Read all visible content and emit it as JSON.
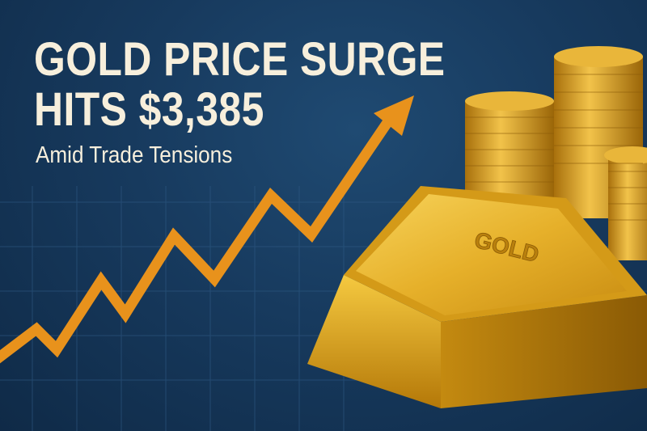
{
  "headline": {
    "line1": "GOLD PRICE SURGE",
    "line2": "HITS $3,385",
    "subtitle": "Amid Trade Tensions"
  },
  "bar_engraving": "GOLD",
  "colors": {
    "background": "#173a5e",
    "text": "#f7efdc",
    "arrow": "#e8921c",
    "gold": "#e0a923"
  },
  "icons": [
    "trend-up-arrow",
    "gold-bar",
    "coin-stacks"
  ]
}
